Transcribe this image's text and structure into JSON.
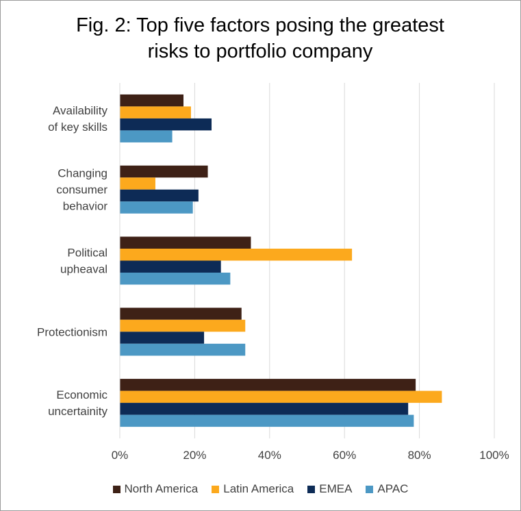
{
  "chart_data": {
    "type": "bar",
    "orientation": "horizontal",
    "title": "Fig. 2: Top five factors posing the greatest\nrisks to portfolio company",
    "categories": [
      [
        "Availability",
        "of key skills"
      ],
      [
        "Changing",
        "consumer",
        "behavior"
      ],
      [
        "Political",
        "upheaval"
      ],
      [
        "Protectionism"
      ],
      [
        "Economic",
        "uncertainity"
      ]
    ],
    "series": [
      {
        "name": "North America",
        "color": "#3e2116",
        "values": [
          17,
          23.5,
          35,
          32.5,
          79
        ]
      },
      {
        "name": "Latin America",
        "color": "#fca91d",
        "values": [
          19,
          9.5,
          62,
          33.5,
          86
        ]
      },
      {
        "name": "EMEA",
        "color": "#0d2b56",
        "values": [
          24.5,
          21,
          27,
          22.5,
          77
        ]
      },
      {
        "name": "APAC",
        "color": "#4c98c4",
        "values": [
          14,
          19.5,
          29.5,
          33.5,
          78.5
        ]
      }
    ],
    "xlim": [
      0,
      100
    ],
    "xticks": [
      "0%",
      "20%",
      "40%",
      "60%",
      "80%",
      "100%"
    ],
    "grid": true,
    "legend_position": "bottom"
  }
}
